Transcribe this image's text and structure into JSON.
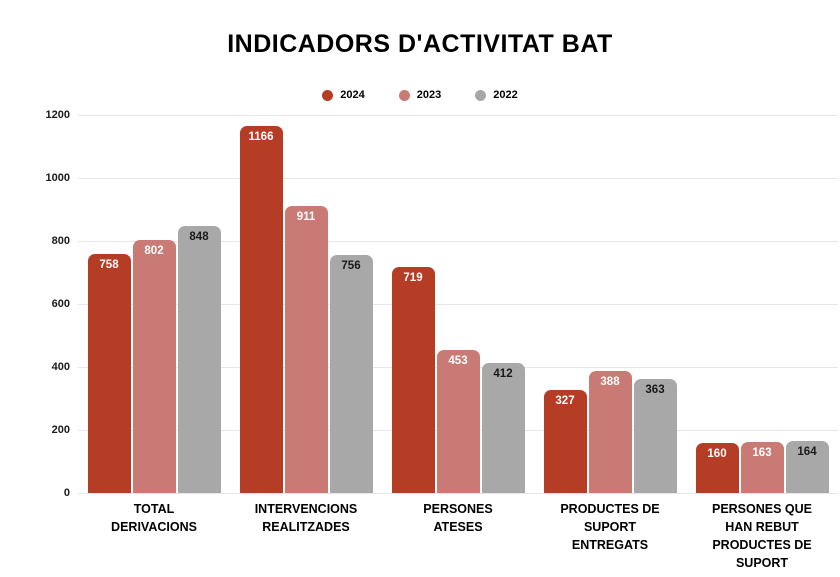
{
  "chart_data": {
    "type": "bar",
    "title": "INDICADORS D'ACTIVITAT BAT",
    "categories": [
      "TOTAL\nDERIVACIONS",
      "INTERVENCIONS\nREALITZADES",
      "PERSONES\nATESES",
      "PRODUCTES DE\nSUPORT\nENTREGATS",
      "PERSONES QUE\nHAN REBUT\nPRODUCTES DE\nSUPORT"
    ],
    "series": [
      {
        "name": "2024",
        "color": "#B53D26",
        "label_color": "#FFFFFF",
        "values": [
          758,
          1166,
          719,
          327,
          160
        ]
      },
      {
        "name": "2023",
        "color": "#C97A74",
        "label_color": "#FFFFFF",
        "values": [
          802,
          911,
          453,
          388,
          163
        ]
      },
      {
        "name": "2022",
        "color": "#A8A8A8",
        "label_color": "#1A1A1A",
        "values": [
          848,
          756,
          412,
          363,
          164
        ]
      }
    ],
    "xlabel": "",
    "ylabel": "",
    "ylim": [
      0,
      1200
    ],
    "yticks": [
      0,
      200,
      400,
      600,
      800,
      1000,
      1200
    ],
    "grid": true,
    "legend_position": "top"
  }
}
